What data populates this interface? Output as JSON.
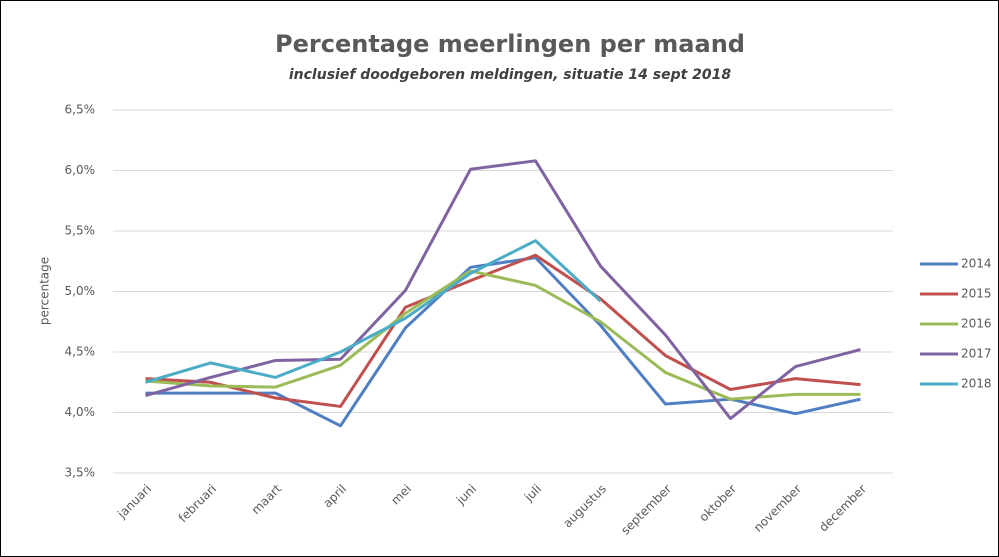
{
  "chart_data": {
    "type": "line",
    "title": "Percentage meerlingen per maand",
    "subtitle": "inclusief doodgeboren meldingen, situatie 14 sept 2018",
    "y_label": "percentage",
    "categories": [
      "januari",
      "februari",
      "maart",
      "april",
      "mei",
      "juni",
      "juli",
      "augustus",
      "september",
      "oktober",
      "november",
      "december"
    ],
    "series": [
      {
        "name": "2014",
        "color": "#4f7ec2",
        "values": [
          4.16,
          4.16,
          4.16,
          3.89,
          4.7,
          5.2,
          5.28,
          4.72,
          4.07,
          4.11,
          3.99,
          4.11
        ]
      },
      {
        "name": "2015",
        "color": "#c0504d",
        "values": [
          4.28,
          4.25,
          4.12,
          4.05,
          4.87,
          5.09,
          5.3,
          4.94,
          4.47,
          4.19,
          4.28,
          4.23
        ]
      },
      {
        "name": "2016",
        "color": "#9bbb59",
        "values": [
          4.26,
          4.22,
          4.21,
          4.39,
          4.82,
          5.17,
          5.05,
          4.75,
          4.33,
          4.11,
          4.15,
          4.15
        ]
      },
      {
        "name": "2017",
        "color": "#8064a2",
        "values": [
          4.14,
          4.29,
          4.43,
          4.44,
          5.01,
          6.01,
          6.08,
          5.21,
          4.64,
          3.95,
          4.38,
          4.52
        ]
      },
      {
        "name": "2018",
        "color": "#4bacc6",
        "values": [
          4.25,
          4.41,
          4.29,
          4.5,
          4.78,
          5.15,
          5.42,
          4.92,
          null,
          null,
          null,
          null
        ]
      }
    ],
    "ylim": [
      3.5,
      6.5
    ],
    "yticks": [
      {
        "value": 3.5,
        "label": "3,5%"
      },
      {
        "value": 4.0,
        "label": "4,0%"
      },
      {
        "value": 4.5,
        "label": "4,5%"
      },
      {
        "value": 5.0,
        "label": "5,0%"
      },
      {
        "value": 5.5,
        "label": "5,5%"
      },
      {
        "value": 6.0,
        "label": "6,0%"
      },
      {
        "value": 6.5,
        "label": "6,5%"
      }
    ],
    "grid": true,
    "legend": "right"
  }
}
